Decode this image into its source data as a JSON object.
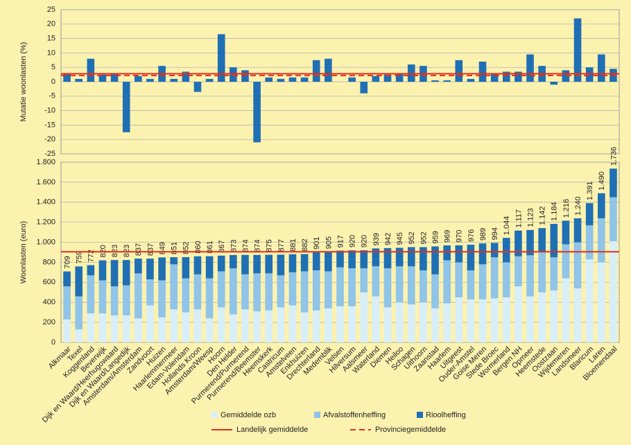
{
  "chart_data": [
    {
      "type": "bar",
      "ylabel": "Mutatie woonlasten  (%)",
      "color": "#1f6fb4",
      "values": [
        3,
        1,
        8,
        2.5,
        3,
        -17.5,
        2,
        1,
        5.5,
        1,
        3.5,
        -3.5,
        1,
        16.5,
        5,
        4,
        -21,
        1.5,
        1,
        1.5,
        1.5,
        7.5,
        8,
        0,
        1.5,
        -4,
        2,
        2.5,
        3,
        6,
        5.5,
        0.5,
        0.5,
        7.5,
        1,
        7,
        3,
        3.5,
        3.5,
        9.5,
        5.5,
        -1,
        4,
        22,
        5,
        9.5,
        4.5
      ],
      "ylim": [
        -25,
        25
      ],
      "yticks": [
        -25,
        -20,
        -15,
        -10,
        -5,
        0,
        5,
        10,
        15,
        20,
        25
      ],
      "grid": true,
      "lines": [
        {
          "name": "Landelijk gemiddelde",
          "color": "#e0301e",
          "style": "solid",
          "value": 2.8
        },
        {
          "name": "Provinciegemiddelde",
          "color": "#e0301e",
          "style": "dashed",
          "value": 2.2
        }
      ]
    },
    {
      "type": "stacked_bar",
      "ylabel": "Woonlasten  (euro)",
      "categories": [
        "Alkmaar",
        "Texel",
        "Koggenland",
        "Beverwijk",
        "Dijk en Waard/Heerhugowaard",
        "Dijk en Waard/Langedijk",
        "Amsterdam/Amsterdam",
        "Zandvoort",
        "Huizen",
        "Haarlemmermeer",
        "Edam-Volendam",
        "Hollands Kroon",
        "Amsterdam/Weesp",
        "Hoorn",
        "Den Helder",
        "Purmerend/Purmerend",
        "Purmerend/Beemster",
        "Heemskerk",
        "Castricum",
        "Amstelveen",
        "Enkhuizen",
        "Drechterland",
        "Medemblik",
        "Velsen",
        "Hilversum",
        "Aalsmeer",
        "Waterland",
        "Diemen",
        "Heiloo",
        "Schagen",
        "Uithoorn",
        "Zaanstad",
        "Haarlem",
        "Uitgeest",
        "Ouder-Amstel",
        "Goise Meren",
        "Stede Broec",
        "Wormerland",
        "Bergen NH",
        "Opmeer",
        "Heemstede",
        "Oostzaan",
        "Wijdemeren",
        "Landsmeer",
        "Blaricum",
        "Laren",
        "Bloemendaal"
      ],
      "series": [
        {
          "name": "Gemiddelde ozb",
          "color": "#d8eef8",
          "values": [
            230,
            130,
            290,
            290,
            270,
            270,
            240,
            370,
            250,
            330,
            300,
            330,
            240,
            350,
            280,
            330,
            310,
            320,
            350,
            370,
            300,
            320,
            340,
            360,
            360,
            500,
            460,
            350,
            400,
            380,
            400,
            340,
            390,
            450,
            430,
            430,
            440,
            450,
            560,
            460,
            500,
            520,
            640,
            540,
            830,
            800,
            1010
          ]
        },
        {
          "name": "Afvalstoffenheffing",
          "color": "#90c4e8",
          "values": [
            330,
            330,
            380,
            330,
            290,
            300,
            450,
            260,
            370,
            450,
            340,
            350,
            400,
            360,
            460,
            350,
            380,
            370,
            320,
            330,
            410,
            400,
            370,
            390,
            380,
            240,
            300,
            390,
            360,
            380,
            320,
            340,
            430,
            350,
            290,
            350,
            410,
            350,
            300,
            410,
            410,
            330,
            340,
            460,
            340,
            440,
            440
          ]
        },
        {
          "name": "Rioolheffing",
          "color": "#1f6fb4",
          "values": [
            149,
            299,
            102,
            200,
            263,
            253,
            147,
            207,
            229,
            71,
            212,
            180,
            221,
            157,
            133,
            194,
            184,
            185,
            207,
            181,
            172,
            181,
            195,
            167,
            180,
            180,
            179,
            202,
            185,
            192,
            232,
            279,
            149,
            170,
            256,
            209,
            144,
            244,
            257,
            253,
            232,
            334,
            236,
            240,
            221,
            250,
            286
          ]
        }
      ],
      "totals": [
        709,
        759,
        772,
        820,
        823,
        823,
        837,
        837,
        849,
        851,
        852,
        860,
        861,
        867,
        873,
        874,
        874,
        875,
        877,
        881,
        882,
        901,
        905,
        917,
        920,
        920,
        939,
        942,
        945,
        952,
        952,
        959,
        969,
        970,
        976,
        989,
        994,
        {
          "value": 1044,
          "label": "1.044"
        },
        {
          "value": 1117,
          "label": "1.117"
        },
        {
          "value": 1123,
          "label": "1.123"
        },
        {
          "value": 1142,
          "label": "1.142"
        },
        {
          "value": 1184,
          "label": "1.184"
        },
        {
          "value": 1216,
          "label": "1.216"
        },
        {
          "value": 1240,
          "label": "1.240"
        },
        {
          "value": 1391,
          "label": "1.391"
        },
        {
          "value": 1490,
          "label": "1.490"
        },
        {
          "value": 1736,
          "label": "1.736"
        }
      ],
      "ylim": [
        0,
        1800
      ],
      "yticks": [
        0,
        200,
        400,
        600,
        800,
        {
          "value": 1000,
          "label": "1.000"
        },
        {
          "value": 1200,
          "label": "1.200"
        },
        {
          "value": 1400,
          "label": "1.400"
        },
        {
          "value": 1600,
          "label": "1.600"
        },
        {
          "value": 1800,
          "label": "1.800"
        }
      ],
      "grid": true,
      "reference_line": {
        "value": 905,
        "color": "#e0301e"
      }
    }
  ]
}
